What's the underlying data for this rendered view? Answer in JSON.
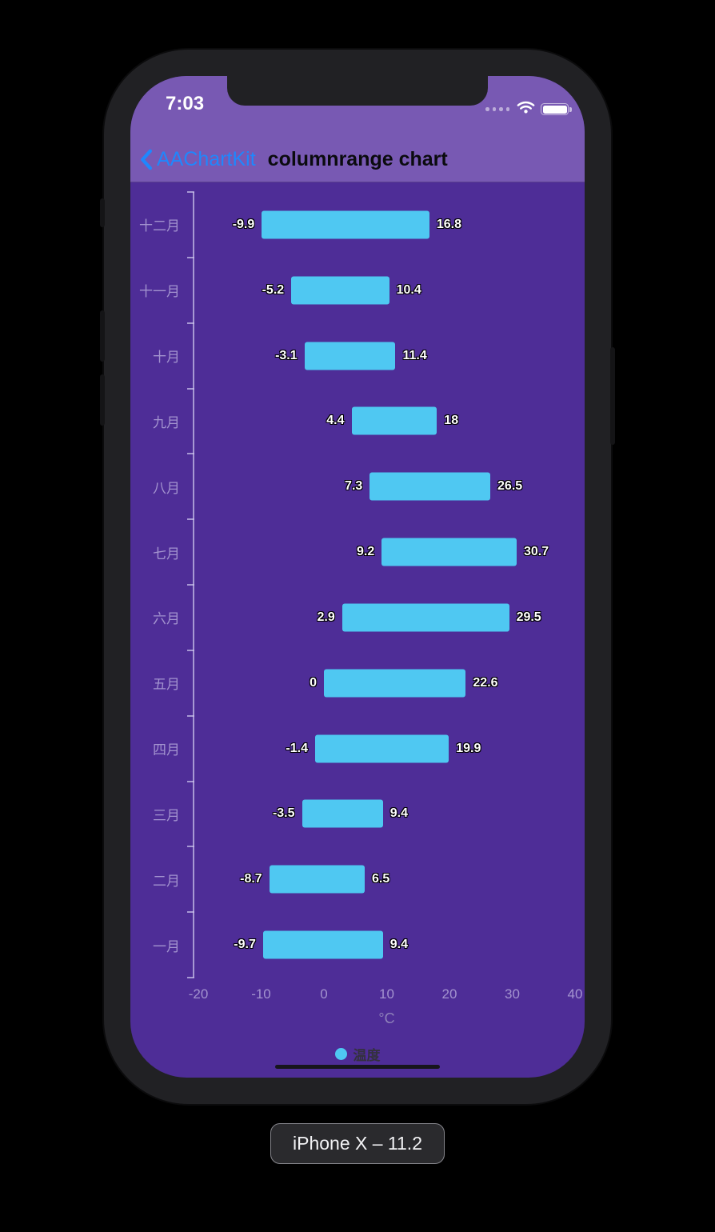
{
  "theme": {
    "page_bg": "#000000",
    "frame_color": "#212124",
    "header_bg": "#7859b3",
    "chart_bg": "#4e2d97",
    "bar_color": "#4fc8f2",
    "accent_blue": "#1f87fd",
    "axis_text_color": "#a393cf"
  },
  "status_bar": {
    "time": "7:03"
  },
  "nav": {
    "back_label": "AAChartKit",
    "title": "columnrange chart"
  },
  "chart_data": {
    "type": "bar",
    "subtype": "columnrange-horizontal",
    "note": "rows listed top-to-bottom as displayed; values are [low, high] temperature ranges",
    "rows": [
      {
        "category": "十二月",
        "low": -9.9,
        "high": 16.8
      },
      {
        "category": "十一月",
        "low": -5.2,
        "high": 10.4
      },
      {
        "category": "十月",
        "low": -3.1,
        "high": 11.4
      },
      {
        "category": "九月",
        "low": 4.4,
        "high": 18
      },
      {
        "category": "八月",
        "low": 7.3,
        "high": 26.5
      },
      {
        "category": "七月",
        "low": 9.2,
        "high": 30.7
      },
      {
        "category": "六月",
        "low": 2.9,
        "high": 29.5
      },
      {
        "category": "五月",
        "low": 0,
        "high": 22.6
      },
      {
        "category": "四月",
        "low": -1.4,
        "high": 19.9
      },
      {
        "category": "三月",
        "low": -3.5,
        "high": 9.4
      },
      {
        "category": "二月",
        "low": -8.7,
        "high": 6.5
      },
      {
        "category": "一月",
        "low": -9.7,
        "high": 9.4
      }
    ],
    "x_axis": {
      "ticks": [
        -20,
        -10,
        0,
        10,
        20,
        30,
        40
      ],
      "min": -20,
      "max": 40,
      "title": "°C"
    },
    "legend": {
      "series_name": "温度",
      "position": "bottom"
    },
    "grid": false
  },
  "device_badge": {
    "label": "iPhone X – 11.2"
  }
}
